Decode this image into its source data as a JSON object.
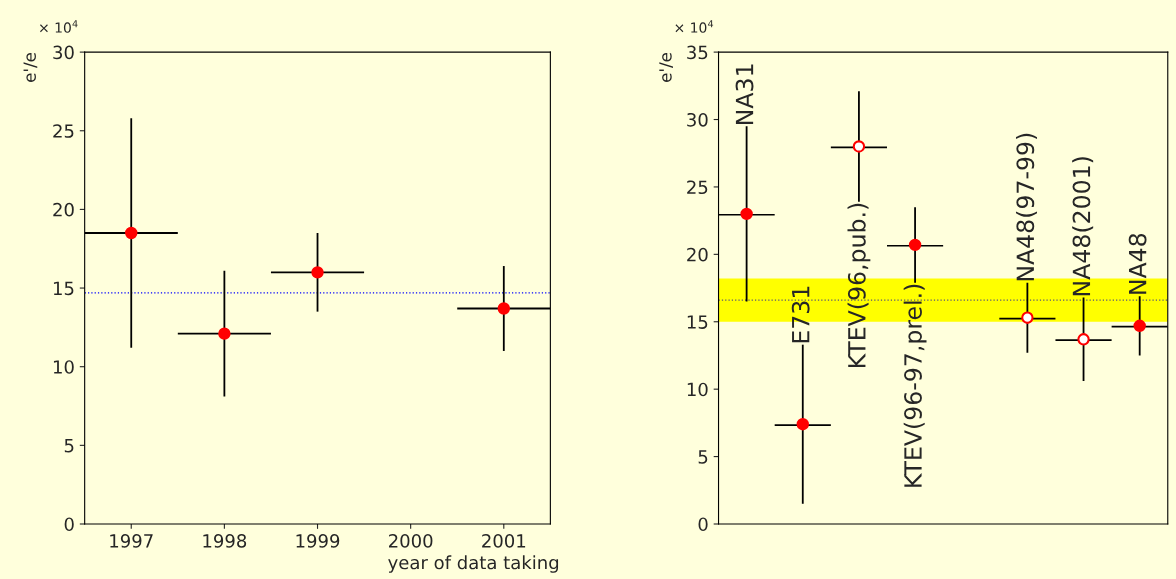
{
  "chart_data": [
    {
      "type": "scatter",
      "ylabel": "e'/e",
      "xlabel": "year of data taking",
      "annotations": [
        "× 10$^{4}$"
      ],
      "xlim": [
        1996.5,
        2001.5
      ],
      "xticks": [
        1997,
        1998,
        1999,
        2000,
        2001
      ],
      "ylim": [
        0,
        30
      ],
      "yticks": [
        0,
        5,
        10,
        15,
        20,
        25,
        30
      ],
      "grid": false,
      "marker": "circle",
      "series": [
        {
          "color": "#ff0000",
          "x": [
            1997,
            1998,
            1999,
            2001
          ],
          "values": [
            18.5,
            12.1,
            16.0,
            13.7
          ],
          "errors": [
            7.3,
            4.0,
            2.5,
            2.7
          ],
          "xerrors": [
            0.5,
            0.5,
            0.5,
            0.5
          ]
        }
      ],
      "ref_lines": [
        {
          "axis": "y",
          "value": 14.7,
          "color": "#0000ff",
          "line_style": "dotted"
        }
      ]
    },
    {
      "type": "scatter",
      "ylabel": "e'/e",
      "tick_labels": "y",
      "annotations": [
        "× 10$^{4}$",
        "NA31",
        "E731",
        "KTEV(96,pub.)",
        "KTEV(96-97,prel.)",
        "NA48(97-99)",
        "NA48(2001)",
        "NA48"
      ],
      "categories": [
        null,
        null,
        null,
        null,
        null,
        null,
        null,
        null
      ],
      "ylim": [
        0,
        35
      ],
      "yticks": [
        0,
        5,
        10,
        15,
        20,
        25,
        30,
        35
      ],
      "grid": false,
      "marker": "circle",
      "series": [
        {
          "color": "#ff0000",
          "values": [
            23.0,
            7.4,
            null,
            20.7,
            null,
            null,
            null,
            14.7
          ],
          "errors": [
            6.5,
            5.9,
            null,
            2.8,
            null,
            null,
            null,
            2.2
          ]
        },
        {
          "color": "#ffffff",
          "values": [
            null,
            null,
            28.0,
            null,
            null,
            15.3,
            13.7,
            null
          ],
          "errors": [
            null,
            null,
            4.1,
            null,
            null,
            2.6,
            3.1,
            null
          ]
        }
      ],
      "bands": [
        {
          "axis": "y",
          "from": 15.0,
          "to": 18.2,
          "color": "#ffff00"
        }
      ],
      "ref_lines": [
        {
          "axis": "y",
          "value": 16.6,
          "color": "#555577",
          "line_style": "dotted"
        }
      ]
    }
  ]
}
